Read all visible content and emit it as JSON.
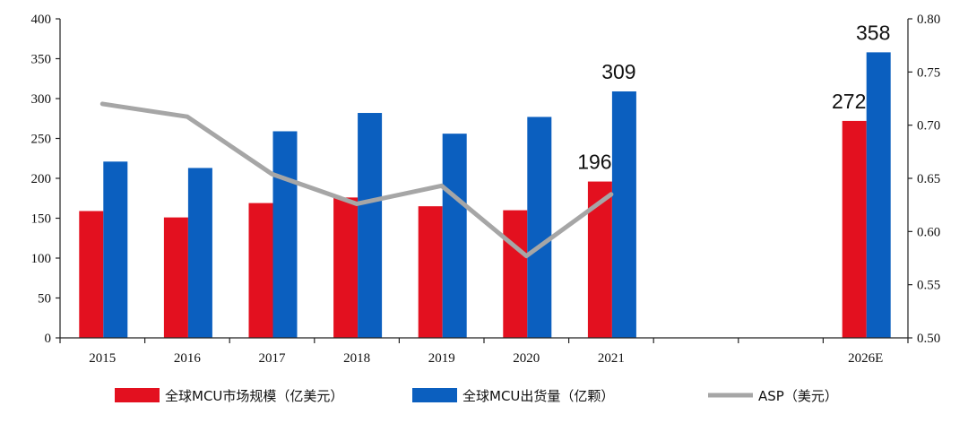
{
  "chart_data": {
    "type": "bar",
    "categories": [
      "2015",
      "2016",
      "2017",
      "2018",
      "2019",
      "2020",
      "2021",
      "",
      "",
      "2026E"
    ],
    "series": [
      {
        "name": "全球MCU市场规模（亿美元）",
        "type": "bar",
        "axis": "left",
        "color": "#e3101f",
        "values": [
          159,
          151,
          169,
          176,
          165,
          160,
          196,
          null,
          null,
          272
        ]
      },
      {
        "name": "全球MCU出货量（亿颗）",
        "type": "bar",
        "axis": "left",
        "color": "#0b5fbf",
        "values": [
          221,
          213,
          259,
          282,
          256,
          277,
          309,
          null,
          null,
          358
        ]
      },
      {
        "name": "ASP（美元）",
        "type": "line",
        "axis": "right",
        "color": "#a6a6a6",
        "values": [
          0.72,
          0.708,
          0.654,
          0.626,
          0.643,
          0.577,
          0.635,
          null,
          null,
          null
        ]
      }
    ],
    "y_left": {
      "min": 0,
      "max": 400,
      "step": 50,
      "tick_labels": [
        "0",
        "50",
        "100",
        "150",
        "200",
        "250",
        "300",
        "350",
        "400"
      ]
    },
    "y_right": {
      "min": 0.5,
      "max": 0.8,
      "step": 0.05,
      "tick_labels": [
        "0.50",
        "0.55",
        "0.60",
        "0.65",
        "0.70",
        "0.75",
        "0.80"
      ]
    },
    "data_labels": [
      {
        "series": 0,
        "index": 6,
        "text": "196"
      },
      {
        "series": 1,
        "index": 6,
        "text": "309"
      },
      {
        "series": 0,
        "index": 9,
        "text": "272"
      },
      {
        "series": 1,
        "index": 9,
        "text": "358"
      }
    ],
    "title": "",
    "xlabel": "",
    "ylabel": "",
    "grid": false,
    "legend_position": "bottom"
  }
}
